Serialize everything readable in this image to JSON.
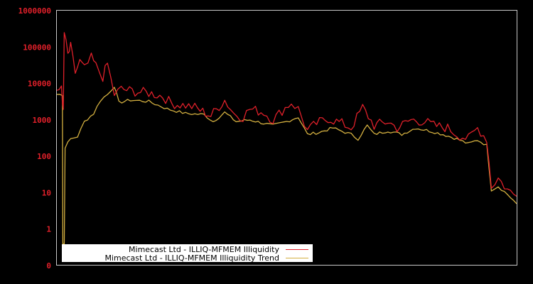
{
  "chart_data": {
    "type": "line",
    "title": "",
    "xlabel": "",
    "ylabel": "",
    "yscale": "log",
    "ylim": [
      0,
      1000000
    ],
    "y_ticks": [
      "1000000",
      "100000",
      "10000",
      "1000",
      "100",
      "10",
      "1",
      "0"
    ],
    "x_ticks": [],
    "grid": false,
    "legend_position": "bottom-left inside",
    "colors": {
      "background": "#000000",
      "axis": "#c8c8c8",
      "tick_label": "#e0202a",
      "series_1": "#e0202a",
      "series_2": "#d4b040"
    },
    "series": [
      {
        "name": "Mimecast Ltd - ILLIQ-MFMEM Illiquidity",
        "color": "#e0202a",
        "points_approx": [
          [
            0.0,
            5000
          ],
          [
            0.01,
            9000
          ],
          [
            0.014,
            1500
          ],
          [
            0.016,
            250000
          ],
          [
            0.024,
            60000
          ],
          [
            0.03,
            100000
          ],
          [
            0.04,
            20000
          ],
          [
            0.05,
            40000
          ],
          [
            0.06,
            25000
          ],
          [
            0.075,
            50000
          ],
          [
            0.085,
            30000
          ],
          [
            0.1,
            15000
          ],
          [
            0.11,
            35000
          ],
          [
            0.125,
            5000
          ],
          [
            0.14,
            7000
          ],
          [
            0.17,
            6000
          ],
          [
            0.2,
            5500
          ],
          [
            0.23,
            4500
          ],
          [
            0.25,
            2800
          ],
          [
            0.28,
            2500
          ],
          [
            0.3,
            2200
          ],
          [
            0.335,
            1300
          ],
          [
            0.365,
            3500
          ],
          [
            0.385,
            1500
          ],
          [
            0.405,
            1200
          ],
          [
            0.42,
            2000
          ],
          [
            0.45,
            1600
          ],
          [
            0.47,
            1000
          ],
          [
            0.49,
            1800
          ],
          [
            0.51,
            3000
          ],
          [
            0.525,
            2000
          ],
          [
            0.545,
            500
          ],
          [
            0.565,
            800
          ],
          [
            0.59,
            1100
          ],
          [
            0.62,
            800
          ],
          [
            0.64,
            600
          ],
          [
            0.665,
            2200
          ],
          [
            0.69,
            700
          ],
          [
            0.72,
            900
          ],
          [
            0.74,
            600
          ],
          [
            0.77,
            1000
          ],
          [
            0.8,
            900
          ],
          [
            0.82,
            700
          ],
          [
            0.85,
            600
          ],
          [
            0.87,
            400
          ],
          [
            0.895,
            300
          ],
          [
            0.915,
            600
          ],
          [
            0.935,
            300
          ],
          [
            0.945,
            15
          ],
          [
            0.96,
            25
          ],
          [
            0.98,
            12
          ],
          [
            1.0,
            8
          ]
        ]
      },
      {
        "name": "Mimecast Ltd - ILLIQ-MFMEM Illiquidity Trend",
        "color": "#d4b040",
        "points_approx": [
          [
            0.0,
            5000
          ],
          [
            0.012,
            5000
          ],
          [
            0.014,
            0.4
          ],
          [
            0.018,
            180
          ],
          [
            0.03,
            300
          ],
          [
            0.045,
            350
          ],
          [
            0.06,
            900
          ],
          [
            0.08,
            1500
          ],
          [
            0.095,
            3500
          ],
          [
            0.11,
            5000
          ],
          [
            0.125,
            8500
          ],
          [
            0.135,
            3000
          ],
          [
            0.16,
            3500
          ],
          [
            0.2,
            3200
          ],
          [
            0.24,
            2000
          ],
          [
            0.28,
            1500
          ],
          [
            0.32,
            1400
          ],
          [
            0.34,
            900
          ],
          [
            0.365,
            1600
          ],
          [
            0.39,
            900
          ],
          [
            0.42,
            1000
          ],
          [
            0.45,
            800
          ],
          [
            0.47,
            700
          ],
          [
            0.5,
            900
          ],
          [
            0.525,
            1200
          ],
          [
            0.545,
            400
          ],
          [
            0.57,
            450
          ],
          [
            0.6,
            600
          ],
          [
            0.64,
            400
          ],
          [
            0.655,
            300
          ],
          [
            0.675,
            700
          ],
          [
            0.69,
            400
          ],
          [
            0.72,
            500
          ],
          [
            0.75,
            400
          ],
          [
            0.78,
            600
          ],
          [
            0.81,
            500
          ],
          [
            0.84,
            400
          ],
          [
            0.87,
            300
          ],
          [
            0.895,
            220
          ],
          [
            0.915,
            280
          ],
          [
            0.935,
            200
          ],
          [
            0.945,
            12
          ],
          [
            0.96,
            15
          ],
          [
            0.98,
            9
          ],
          [
            1.0,
            5
          ]
        ]
      }
    ]
  },
  "legend": {
    "items": [
      {
        "label": "Mimecast Ltd - ILLIQ-MFMEM Illiquidity",
        "color": "#e0202a"
      },
      {
        "label": "Mimecast Ltd - ILLIQ-MFMEM Illiquidity Trend",
        "color": "#d4b040"
      }
    ]
  }
}
